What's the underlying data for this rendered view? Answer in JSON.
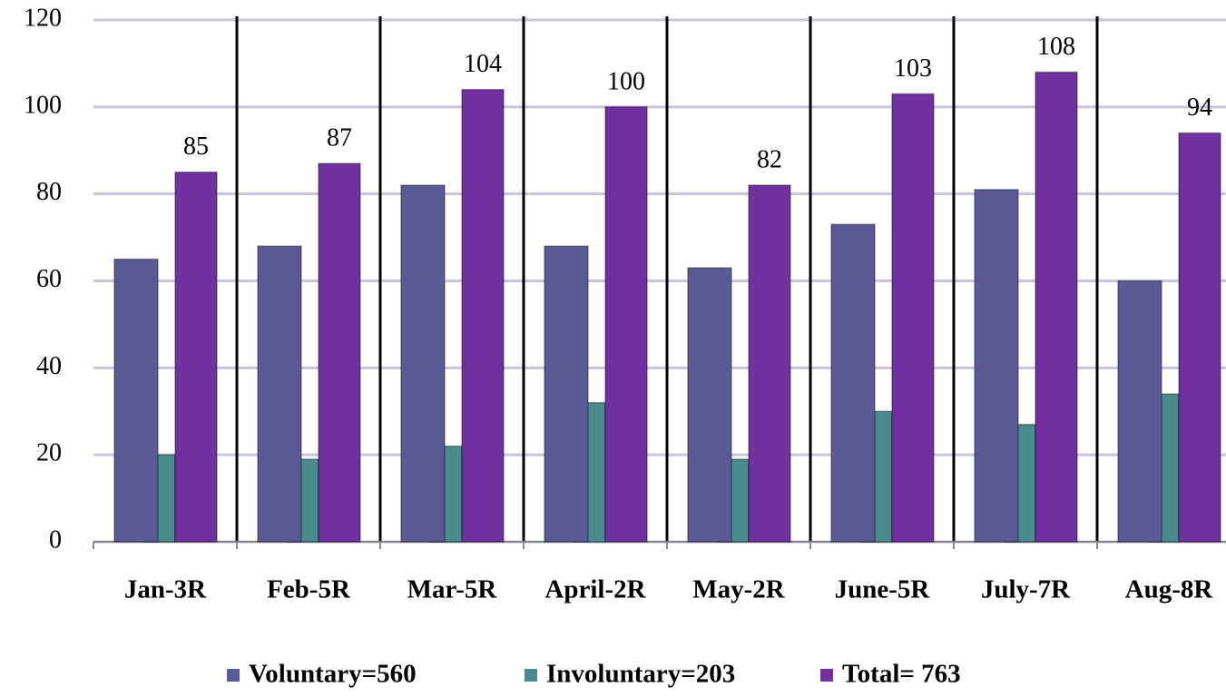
{
  "chart_data": {
    "type": "bar",
    "categories": [
      "Jan-3R",
      "Feb-5R",
      "Mar-5R",
      "April-2R",
      "May-2R",
      "June-5R",
      "July-7R",
      "Aug-8R"
    ],
    "series": [
      {
        "name": "Voluntary=560",
        "color": "#5b5a96",
        "values": [
          65,
          68,
          82,
          68,
          63,
          73,
          81,
          60
        ]
      },
      {
        "name": "Involuntary=203",
        "color": "#4a8c8c",
        "values": [
          20,
          19,
          22,
          32,
          19,
          30,
          27,
          34
        ]
      },
      {
        "name": "Total= 763",
        "color": "#7030a0",
        "values": [
          85,
          87,
          104,
          100,
          82,
          103,
          108,
          94
        ],
        "data_labels": true
      }
    ],
    "ylim": [
      0,
      120
    ],
    "yticks": [
      0,
      20,
      40,
      60,
      80,
      100,
      120
    ],
    "grid": true,
    "legend": "bottom"
  }
}
